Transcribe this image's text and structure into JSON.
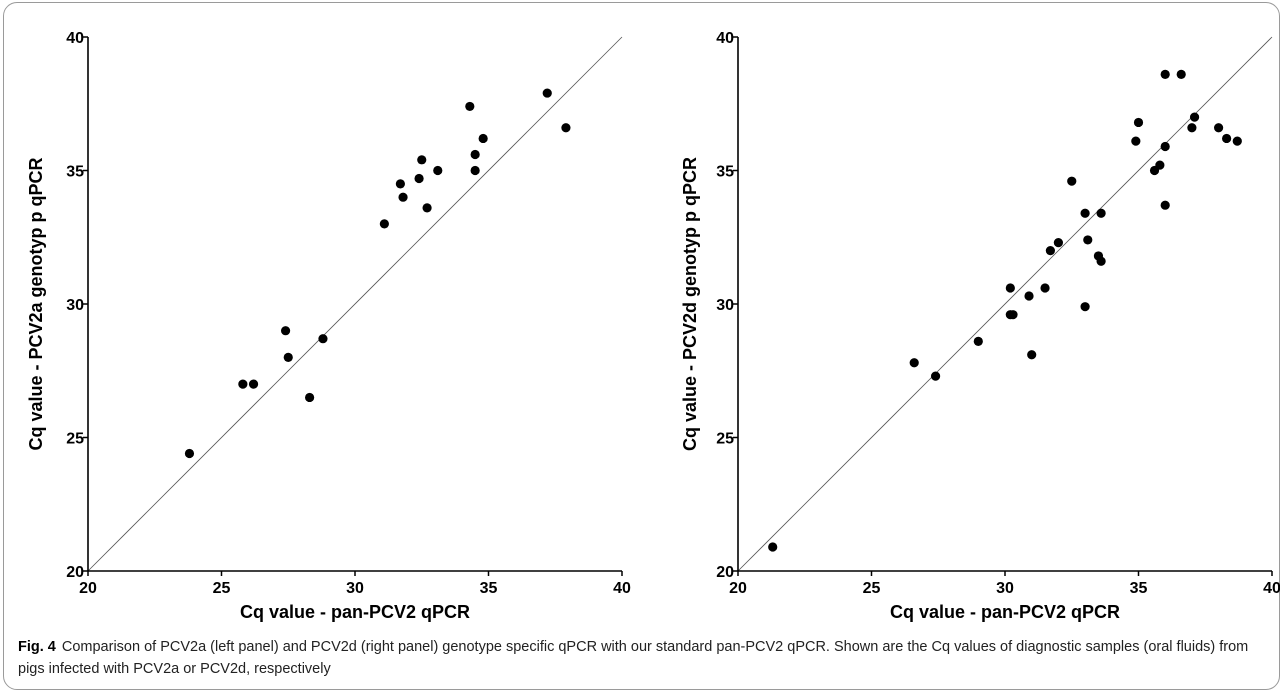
{
  "figure": {
    "caption_label": "Fig. 4",
    "caption_text": "Comparison of PCV2a (left panel) and PCV2d (right panel) genotype specific qPCR with our standard pan-PCV2 qPCR. Shown are the Cq values of diagnostic samples (oral fluids) from pigs infected with PCV2a or PCV2d, respectively"
  },
  "chart_data": [
    {
      "type": "scatter",
      "title": "",
      "xlabel": "Cq value - pan-PCV2 qPCR",
      "ylabel": "Cq value - PCV2a genotyp p qPCR",
      "xlim": [
        20,
        40
      ],
      "ylim": [
        20,
        40
      ],
      "xticks": [
        "20",
        "25",
        "30",
        "35",
        "40"
      ],
      "yticks": [
        "20",
        "25",
        "30",
        "35",
        "40"
      ],
      "reference_line": "y = x",
      "grid": false,
      "points": [
        [
          23.8,
          24.4
        ],
        [
          25.8,
          27.0
        ],
        [
          26.2,
          27.0
        ],
        [
          27.4,
          29.0
        ],
        [
          27.5,
          28.0
        ],
        [
          28.3,
          26.5
        ],
        [
          28.8,
          28.7
        ],
        [
          31.1,
          33.0
        ],
        [
          31.7,
          34.5
        ],
        [
          31.8,
          34.0
        ],
        [
          32.4,
          34.7
        ],
        [
          32.5,
          35.4
        ],
        [
          32.7,
          33.6
        ],
        [
          33.1,
          35.0
        ],
        [
          34.3,
          37.4
        ],
        [
          34.5,
          35.6
        ],
        [
          34.5,
          35.0
        ],
        [
          34.8,
          36.2
        ],
        [
          37.2,
          37.9
        ],
        [
          37.9,
          36.6
        ]
      ]
    },
    {
      "type": "scatter",
      "title": "",
      "xlabel": "Cq value - pan-PCV2 qPCR",
      "ylabel": "Cq value - PCV2d genotyp p qPCR",
      "xlim": [
        20,
        40
      ],
      "ylim": [
        20,
        40
      ],
      "xticks": [
        "20",
        "25",
        "30",
        "35",
        "40"
      ],
      "yticks": [
        "20",
        "25",
        "30",
        "35",
        "40"
      ],
      "reference_line": "y = x",
      "grid": false,
      "points": [
        [
          21.3,
          20.9
        ],
        [
          26.6,
          27.8
        ],
        [
          27.4,
          27.3
        ],
        [
          29.0,
          28.6
        ],
        [
          30.2,
          30.6
        ],
        [
          30.2,
          29.6
        ],
        [
          30.3,
          29.6
        ],
        [
          30.9,
          30.3
        ],
        [
          31.0,
          28.1
        ],
        [
          31.5,
          30.6
        ],
        [
          31.7,
          32.0
        ],
        [
          32.0,
          32.3
        ],
        [
          32.5,
          34.6
        ],
        [
          33.0,
          33.4
        ],
        [
          33.0,
          29.9
        ],
        [
          33.1,
          32.4
        ],
        [
          33.5,
          31.8
        ],
        [
          33.6,
          31.6
        ],
        [
          33.6,
          33.4
        ],
        [
          34.9,
          36.1
        ],
        [
          35.0,
          36.8
        ],
        [
          35.6,
          35.0
        ],
        [
          35.8,
          35.2
        ],
        [
          36.0,
          38.6
        ],
        [
          36.0,
          35.9
        ],
        [
          36.0,
          33.7
        ],
        [
          36.6,
          38.6
        ],
        [
          37.0,
          36.6
        ],
        [
          37.1,
          37.0
        ],
        [
          38.0,
          36.6
        ],
        [
          38.3,
          36.2
        ],
        [
          38.7,
          36.1
        ]
      ]
    }
  ]
}
